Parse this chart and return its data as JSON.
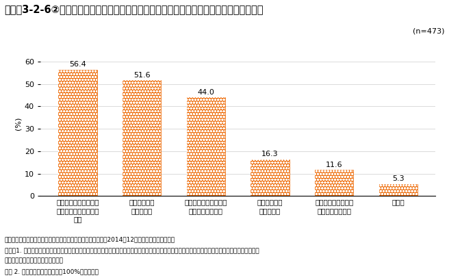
{
  "title": "コラム3-2-6②図　地域主要産業にかかる消費・需要情報提供をあまり実施していない理由",
  "n_label": "(n=473)",
  "ylabel": "(%)",
  "categories": [
    "情報の収集方法が分か\nらない、収集が困難な\nため",
    "情報の分析が\n困難なため",
    "どのような情報が必要\nか分からないため",
    "情報の伝達が\n困難なため",
    "そもそも情報提供は\n必要ではないため",
    "その他"
  ],
  "values": [
    56.4,
    51.6,
    44.0,
    16.3,
    11.6,
    5.3
  ],
  "bar_color": "#EE7010",
  "ylim": [
    0,
    65
  ],
  "yticks": [
    0,
    10,
    20,
    30,
    40,
    50,
    60
  ],
  "note_line1": "資料：中小企業庁委託「地域活性化への取組に関する調査」（2014年12月、ランドブレイン㈱）",
  "note_line2": "（注）1. 地域の主要産業にかかる消費・需要情報の中小企業への提供を、現在、「あまり実施していない」又は、「全く実施していない」と回答した市",
  "note_line3": "　　　　町村に対して尋ねている。",
  "note_line4": "　　 2. 複数回答のため、合計は100%を超える。",
  "value_fontsize": 8,
  "xlabel_fontsize": 7.5,
  "title_fontsize": 10.5,
  "note_fontsize": 6.5
}
